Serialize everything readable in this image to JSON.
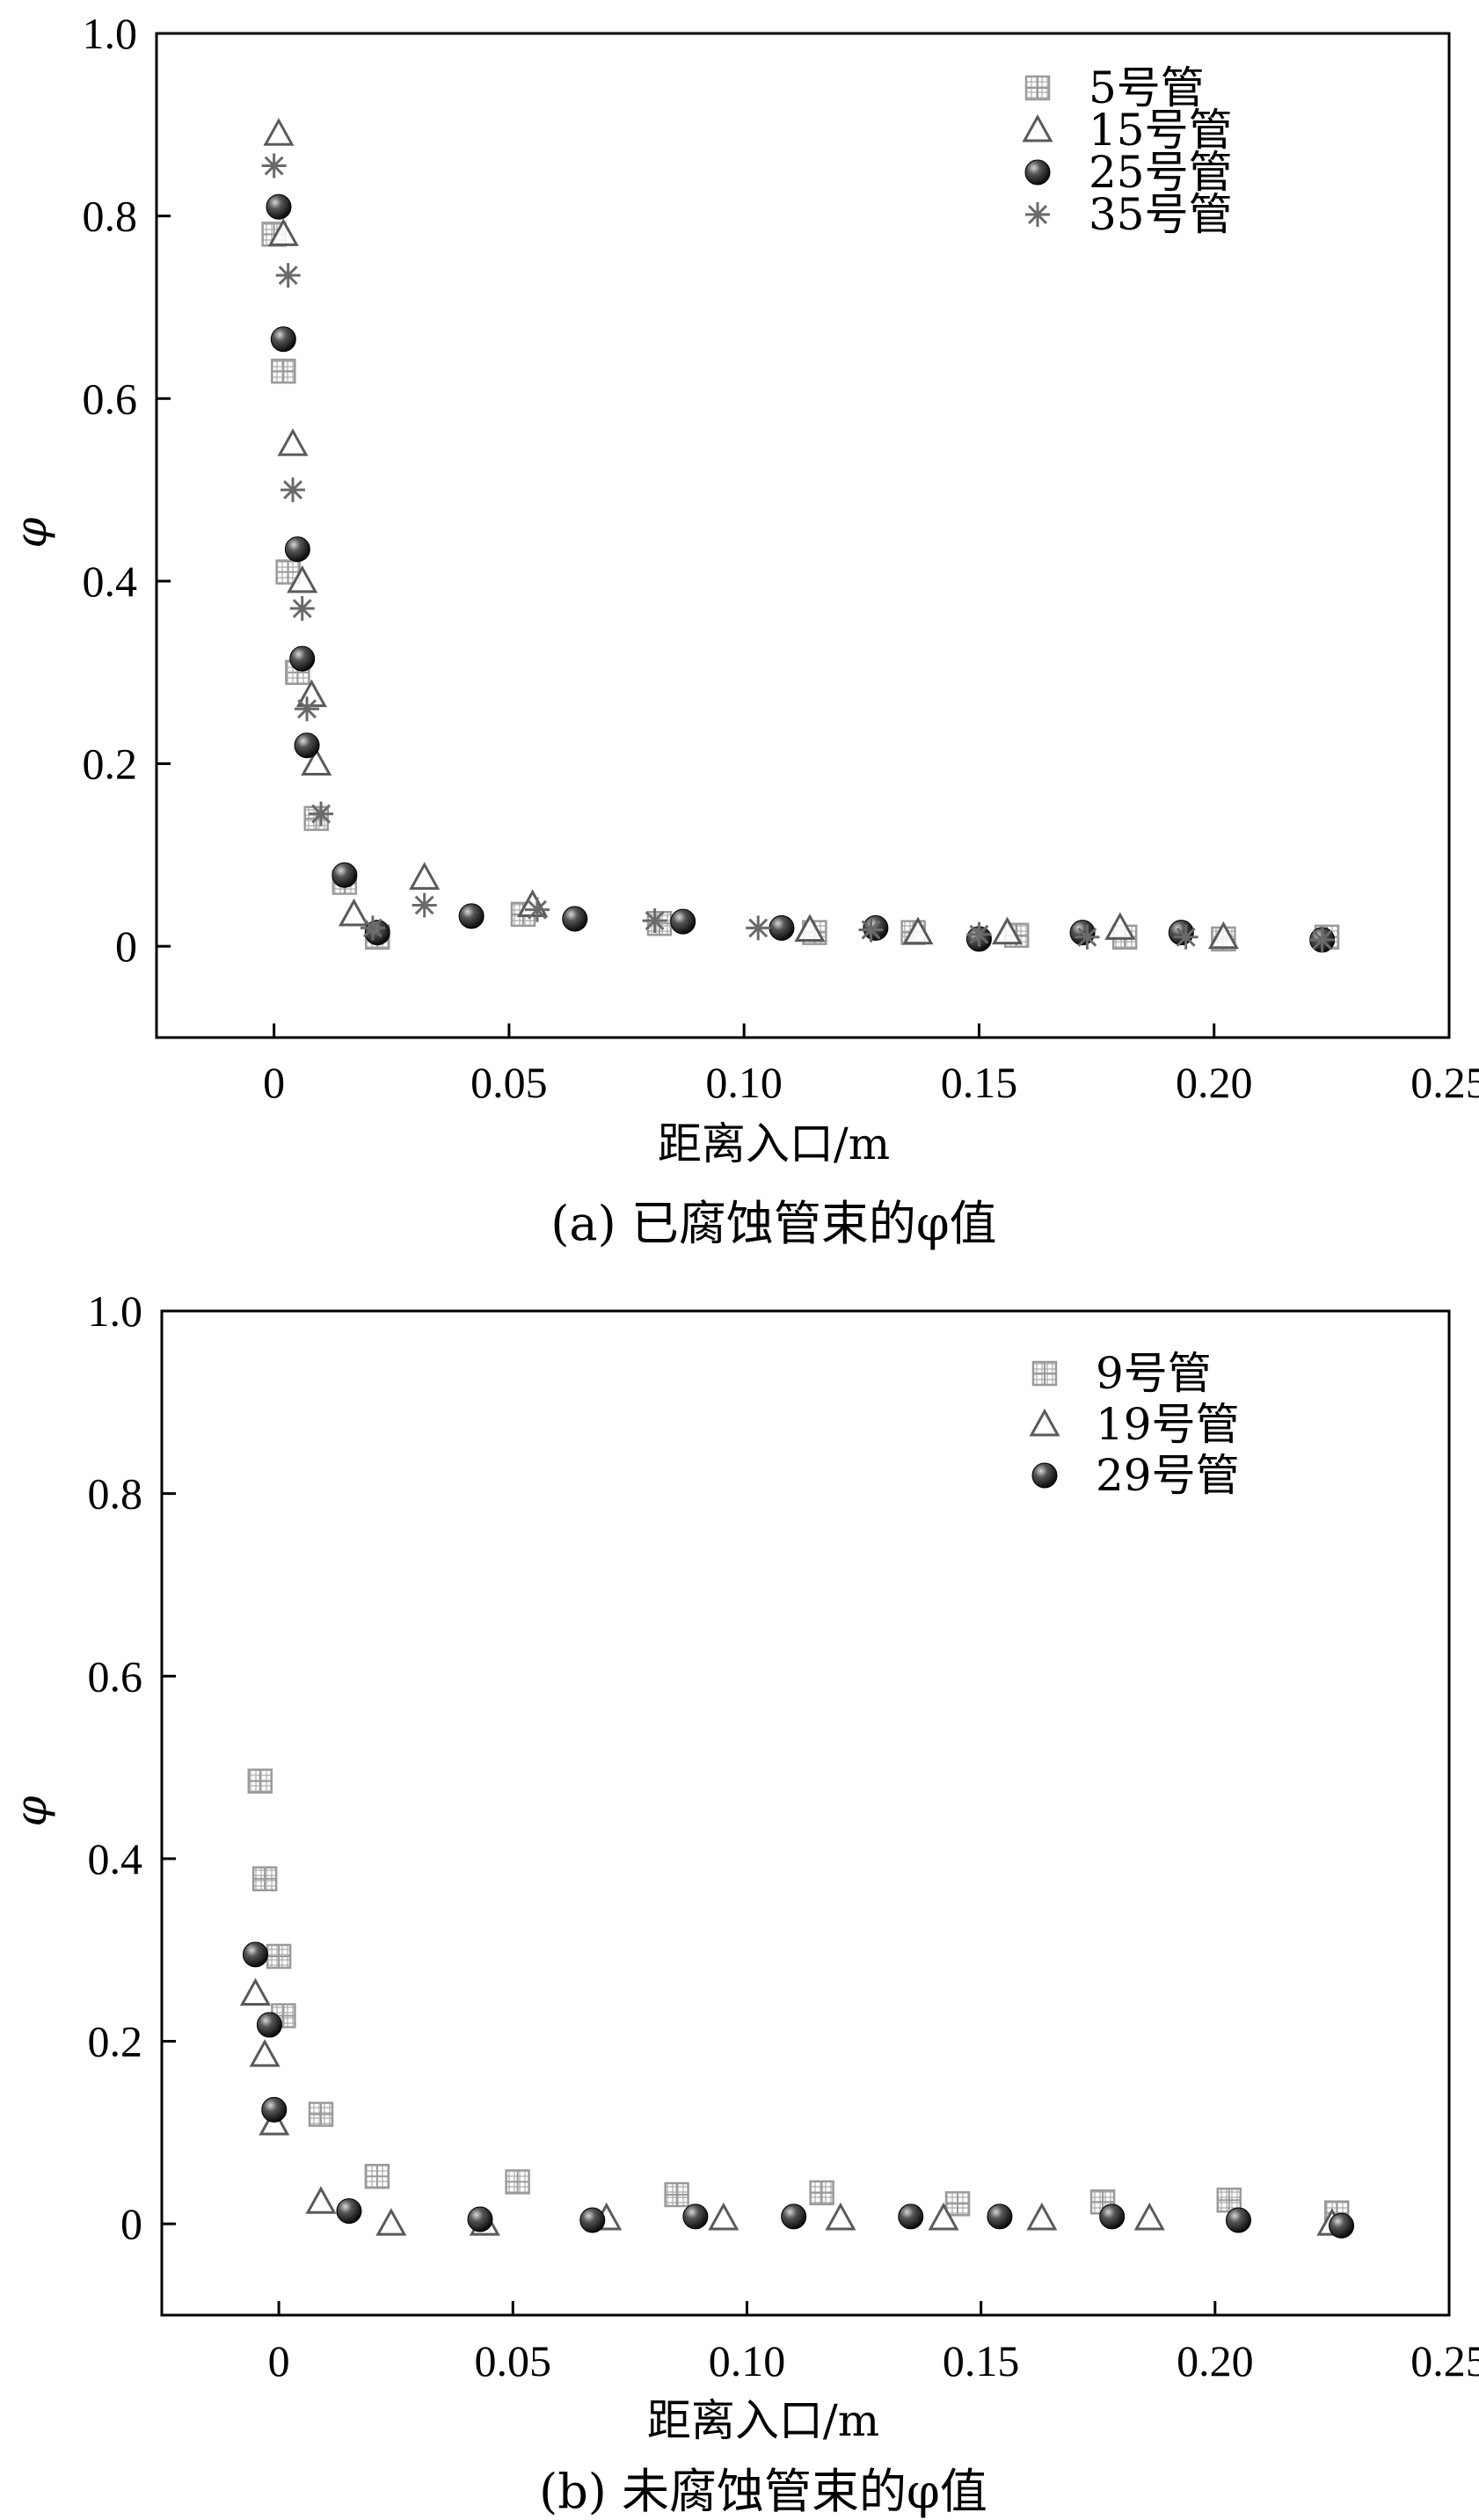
{
  "chart_data": [
    {
      "type": "scatter",
      "panel": "a",
      "caption": "(a) 已腐蚀管束的φ值",
      "xlabel": "距离入口/m",
      "ylabel": "φ",
      "xlim": [
        -0.025,
        0.25
      ],
      "ylim": [
        -0.1,
        1.0
      ],
      "xticks": [
        0,
        0.05,
        0.1,
        0.15,
        0.2,
        0.25
      ],
      "xtick_labels": [
        "0",
        "0.05",
        "0.10",
        "0.15",
        "0.20",
        "0.25"
      ],
      "yticks": [
        0,
        0.2,
        0.4,
        0.6,
        0.8,
        1.0
      ],
      "ytick_labels": [
        "0",
        "0.2",
        "0.4",
        "0.6",
        "0.8",
        "1.0"
      ],
      "grid": false,
      "legend_position": "top-right",
      "series": [
        {
          "name": "5号管",
          "marker": "square-plus",
          "color": "#9a9a9a",
          "points": [
            [
              0.0,
              0.78
            ],
            [
              0.002,
              0.63
            ],
            [
              0.003,
              0.41
            ],
            [
              0.005,
              0.3
            ],
            [
              0.009,
              0.14
            ],
            [
              0.015,
              0.07
            ],
            [
              0.022,
              0.01
            ],
            [
              0.053,
              0.035
            ],
            [
              0.082,
              0.025
            ],
            [
              0.115,
              0.015
            ],
            [
              0.136,
              0.015
            ],
            [
              0.158,
              0.012
            ],
            [
              0.181,
              0.01
            ],
            [
              0.202,
              0.008
            ],
            [
              0.224,
              0.01
            ]
          ]
        },
        {
          "name": "15号管",
          "marker": "triangle-open",
          "color": "#5a5a5a",
          "points": [
            [
              0.001,
              0.89
            ],
            [
              0.002,
              0.78
            ],
            [
              0.004,
              0.55
            ],
            [
              0.006,
              0.4
            ],
            [
              0.008,
              0.275
            ],
            [
              0.009,
              0.2
            ],
            [
              0.017,
              0.035
            ],
            [
              0.032,
              0.075
            ],
            [
              0.055,
              0.045
            ],
            [
              0.114,
              0.018
            ],
            [
              0.137,
              0.015
            ],
            [
              0.156,
              0.015
            ],
            [
              0.18,
              0.02
            ],
            [
              0.202,
              0.01
            ]
          ]
        },
        {
          "name": "25号管",
          "marker": "ball",
          "color": "#111111",
          "points": [
            [
              0.001,
              0.81
            ],
            [
              0.002,
              0.665
            ],
            [
              0.005,
              0.435
            ],
            [
              0.006,
              0.315
            ],
            [
              0.007,
              0.22
            ],
            [
              0.015,
              0.078
            ],
            [
              0.022,
              0.015
            ],
            [
              0.042,
              0.033
            ],
            [
              0.064,
              0.03
            ],
            [
              0.087,
              0.027
            ],
            [
              0.108,
              0.02
            ],
            [
              0.128,
              0.02
            ],
            [
              0.15,
              0.008
            ],
            [
              0.172,
              0.015
            ],
            [
              0.193,
              0.015
            ],
            [
              0.223,
              0.007
            ]
          ]
        },
        {
          "name": "35号管",
          "marker": "asterisk",
          "color": "#6a6a6a",
          "points": [
            [
              0.0,
              0.855
            ],
            [
              0.003,
              0.735
            ],
            [
              0.004,
              0.5
            ],
            [
              0.006,
              0.37
            ],
            [
              0.007,
              0.26
            ],
            [
              0.01,
              0.145
            ],
            [
              0.021,
              0.02
            ],
            [
              0.032,
              0.045
            ],
            [
              0.056,
              0.04
            ],
            [
              0.081,
              0.028
            ],
            [
              0.103,
              0.02
            ],
            [
              0.127,
              0.018
            ],
            [
              0.15,
              0.013
            ],
            [
              0.173,
              0.01
            ],
            [
              0.194,
              0.01
            ],
            [
              0.223,
              0.007
            ]
          ]
        }
      ]
    },
    {
      "type": "scatter",
      "panel": "b",
      "caption": "(b) 未腐蚀管束的φ值",
      "xlabel": "距离入口/m",
      "ylabel": "φ",
      "xlim": [
        -0.025,
        0.25
      ],
      "ylim": [
        -0.1,
        1.0
      ],
      "xticks": [
        0,
        0.05,
        0.1,
        0.15,
        0.2,
        0.25
      ],
      "xtick_labels": [
        "0",
        "0.05",
        "0.10",
        "0.15",
        "0.20",
        "0.25"
      ],
      "yticks": [
        0,
        0.2,
        0.4,
        0.6,
        0.8,
        1.0
      ],
      "ytick_labels": [
        "0",
        "0.2",
        "0.4",
        "0.6",
        "0.8",
        "1.0"
      ],
      "grid": false,
      "legend_position": "top-right",
      "series": [
        {
          "name": "9号管",
          "marker": "square-plus",
          "color": "#9a9a9a",
          "points": [
            [
              -0.004,
              0.485
            ],
            [
              -0.003,
              0.378
            ],
            [
              0.0,
              0.293
            ],
            [
              0.001,
              0.228
            ],
            [
              0.009,
              0.12
            ],
            [
              0.021,
              0.052
            ],
            [
              0.051,
              0.046
            ],
            [
              0.085,
              0.032
            ],
            [
              0.116,
              0.034
            ],
            [
              0.145,
              0.022
            ],
            [
              0.176,
              0.024
            ],
            [
              0.203,
              0.026
            ],
            [
              0.226,
              0.012
            ]
          ]
        },
        {
          "name": "19号管",
          "marker": "triangle-open",
          "color": "#5a5a5a",
          "points": [
            [
              -0.005,
              0.252
            ],
            [
              -0.003,
              0.185
            ],
            [
              -0.001,
              0.11
            ],
            [
              0.009,
              0.024
            ],
            [
              0.024,
              0.0
            ],
            [
              0.044,
              0.0
            ],
            [
              0.07,
              0.006
            ],
            [
              0.095,
              0.006
            ],
            [
              0.12,
              0.006
            ],
            [
              0.142,
              0.006
            ],
            [
              0.163,
              0.006
            ],
            [
              0.186,
              0.006
            ],
            [
              0.225,
              0.0
            ]
          ]
        },
        {
          "name": "29号管",
          "marker": "ball",
          "color": "#111111",
          "points": [
            [
              -0.005,
              0.295
            ],
            [
              -0.002,
              0.218
            ],
            [
              -0.001,
              0.125
            ],
            [
              0.015,
              0.014
            ],
            [
              0.043,
              0.005
            ],
            [
              0.067,
              0.004
            ],
            [
              0.089,
              0.008
            ],
            [
              0.11,
              0.008
            ],
            [
              0.135,
              0.008
            ],
            [
              0.154,
              0.008
            ],
            [
              0.178,
              0.008
            ],
            [
              0.205,
              0.004
            ],
            [
              0.227,
              -0.002
            ]
          ]
        }
      ]
    }
  ]
}
